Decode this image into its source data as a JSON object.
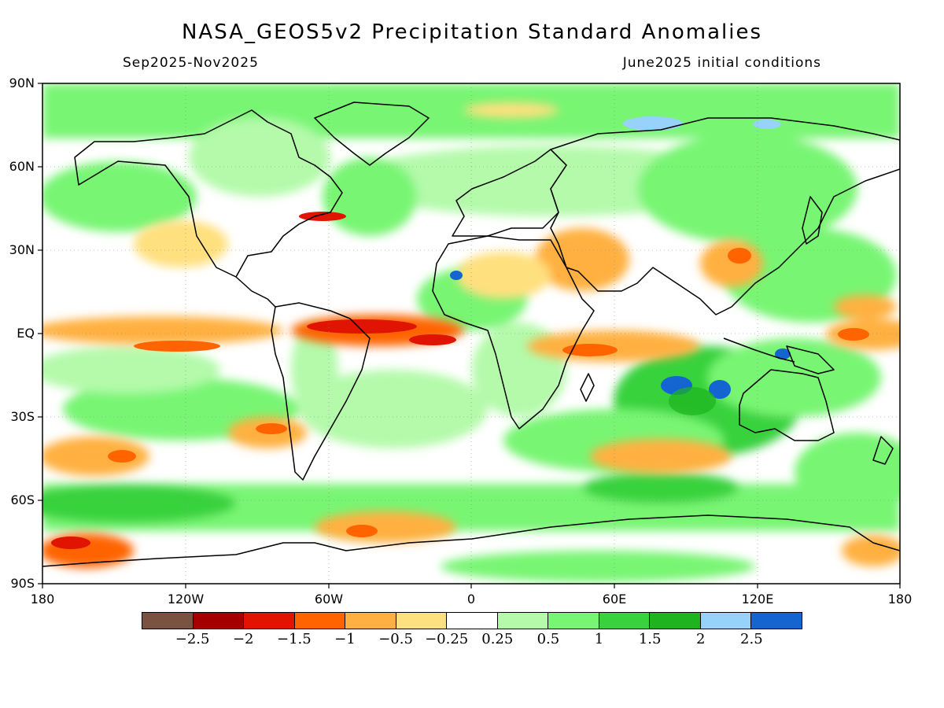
{
  "header": {
    "title": "NASA_GEOS5v2 Precipitation Standard Anomalies",
    "period": "Sep2025-Nov2025",
    "init": "June2025 initial conditions"
  },
  "axes": {
    "lat_labels": [
      "90N",
      "60N",
      "30N",
      "EQ",
      "30S",
      "60S",
      "90S"
    ],
    "lon_labels": [
      "180",
      "120W",
      "60W",
      "0",
      "60E",
      "120E",
      "180"
    ]
  },
  "colorbar": {
    "colors": [
      "#7b5142",
      "#a40000",
      "#e01400",
      "#ff6400",
      "#ffb040",
      "#ffe07e",
      "#ffffff",
      "#b4faaa",
      "#78f573",
      "#37d23c",
      "#1eb41e",
      "#96d2fa",
      "#1464d2"
    ],
    "labels": [
      "−2.5",
      "−2",
      "−1.5",
      "−1",
      "−0.5",
      "−0.25",
      "0.25",
      "0.5",
      "1",
      "1.5",
      "2",
      "2.5"
    ]
  },
  "map": {
    "ocean_background": "#ffffff",
    "coastline_color": "#000000"
  }
}
